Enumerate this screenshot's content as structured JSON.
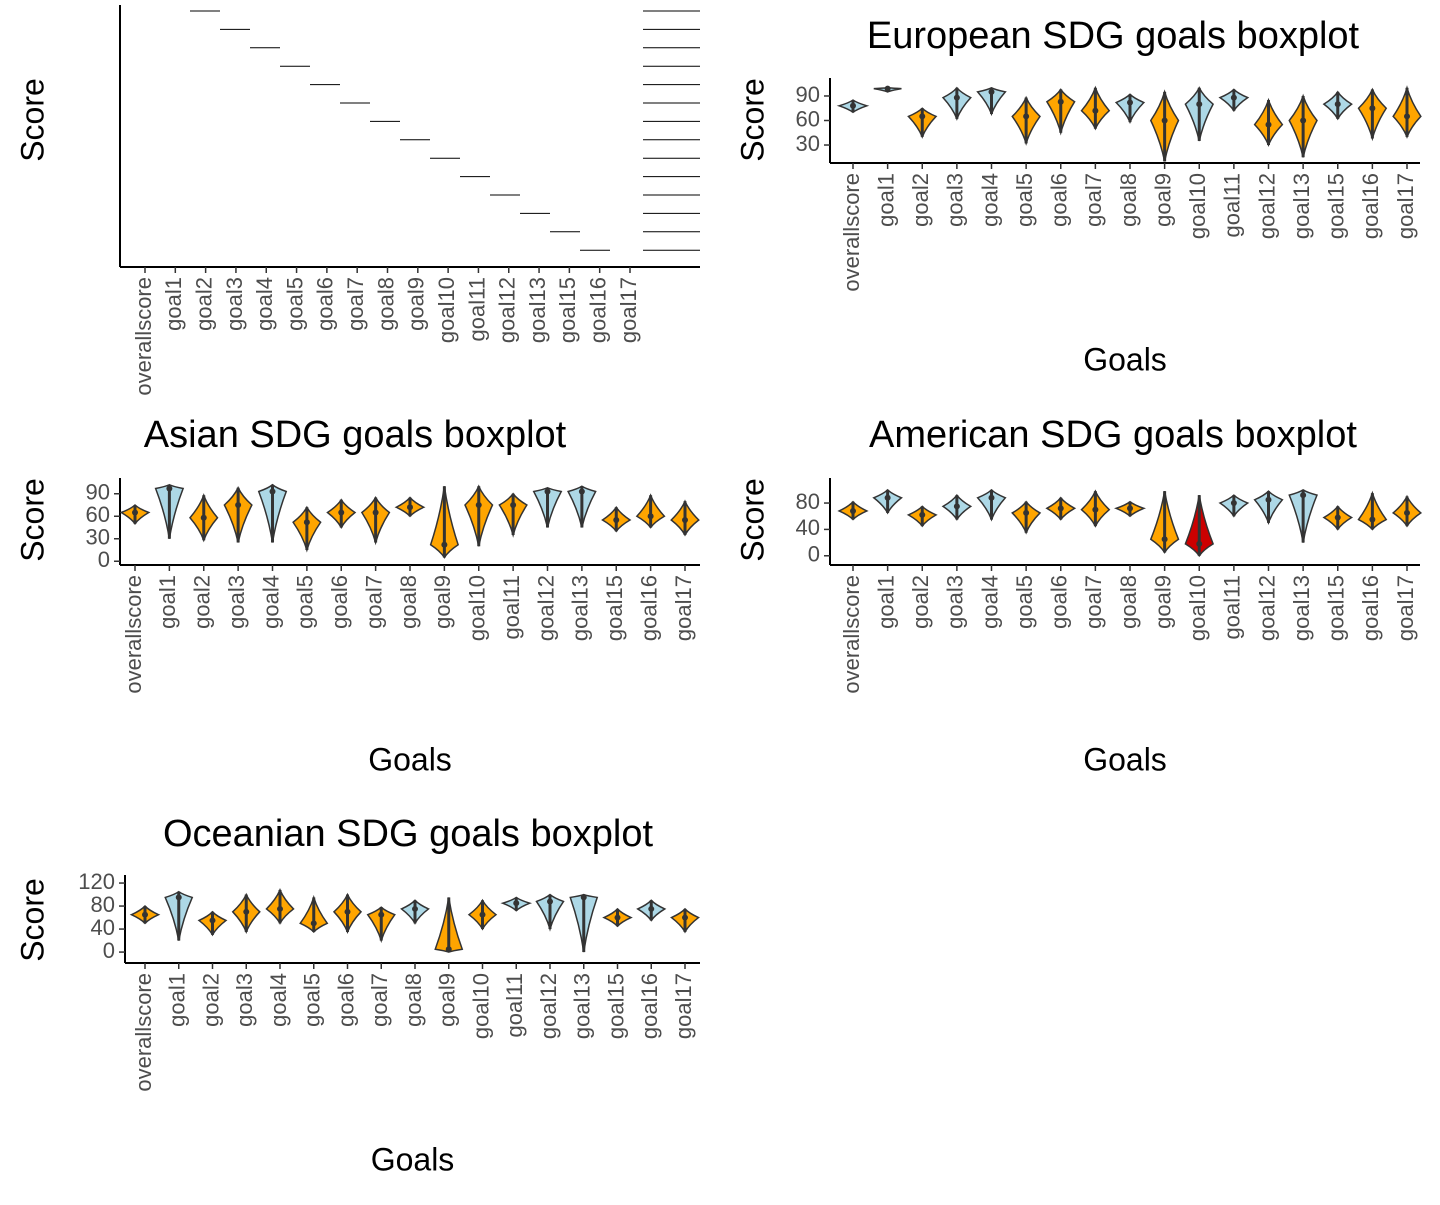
{
  "chart_data": [
    {
      "type": "violin",
      "y_label": "Score",
      "categories": [
        "overallscore",
        "goal1",
        "goal2",
        "goal3",
        "goal4",
        "goal5",
        "goal6",
        "goal7",
        "goal8",
        "goal9",
        "goal10",
        "goal11",
        "goal12",
        "goal13",
        "goal15",
        "goal16",
        "goal17"
      ]
    },
    {
      "type": "violin",
      "title": "European SDG goals boxplot",
      "x_label": "Goals",
      "y_label": "Score",
      "categories": [
        "overallscore",
        "goal1",
        "goal2",
        "goal3",
        "goal4",
        "goal5",
        "goal6",
        "goal7",
        "goal8",
        "goal9",
        "goal10",
        "goal11",
        "goal12",
        "goal13",
        "goal15",
        "goal16",
        "goal17"
      ],
      "medians": [
        78,
        99,
        65,
        88,
        95,
        65,
        83,
        72,
        82,
        60,
        80,
        88,
        55,
        60,
        80,
        75,
        65
      ],
      "mins": [
        70,
        95,
        40,
        62,
        68,
        32,
        45,
        50,
        58,
        10,
        35,
        72,
        30,
        15,
        62,
        38,
        40
      ],
      "maxs": [
        85,
        100,
        75,
        100,
        100,
        88,
        98,
        100,
        92,
        95,
        100,
        98,
        85,
        90,
        95,
        98,
        100
      ],
      "colors": [
        "#ADD8E6",
        "#ADD8E6",
        "#FFA500",
        "#ADD8E6",
        "#ADD8E6",
        "#FFA500",
        "#FFA500",
        "#FFA500",
        "#ADD8E6",
        "#FFA500",
        "#ADD8E6",
        "#ADD8E6",
        "#FFA500",
        "#FFA500",
        "#ADD8E6",
        "#FFA500",
        "#FFA500"
      ],
      "ylim": [
        8,
        112
      ],
      "yticks": [
        30,
        60,
        90
      ]
    },
    {
      "type": "violin",
      "title": "Asian SDG goals boxplot",
      "x_label": "Goals",
      "y_label": "Score",
      "categories": [
        "overallscore",
        "goal1",
        "goal2",
        "goal3",
        "goal4",
        "goal5",
        "goal6",
        "goal7",
        "goal8",
        "goal9",
        "goal10",
        "goal11",
        "goal12",
        "goal13",
        "goal15",
        "goal16",
        "goal17"
      ],
      "medians": [
        65,
        97,
        58,
        75,
        93,
        52,
        65,
        65,
        72,
        22,
        75,
        75,
        93,
        93,
        55,
        60,
        55
      ],
      "mins": [
        50,
        30,
        28,
        25,
        25,
        15,
        45,
        25,
        60,
        5,
        20,
        35,
        45,
        45,
        40,
        45,
        35
      ],
      "maxs": [
        75,
        102,
        88,
        98,
        102,
        72,
        82,
        85,
        85,
        100,
        100,
        90,
        98,
        100,
        72,
        88,
        80
      ],
      "colors": [
        "#FFA500",
        "#ADD8E6",
        "#FFA500",
        "#FFA500",
        "#ADD8E6",
        "#FFA500",
        "#FFA500",
        "#FFA500",
        "#FFA500",
        "#FFA500",
        "#FFA500",
        "#FFA500",
        "#ADD8E6",
        "#ADD8E6",
        "#FFA500",
        "#FFA500",
        "#FFA500"
      ],
      "ylim": [
        -5,
        111
      ],
      "yticks": [
        0,
        30,
        60,
        90
      ]
    },
    {
      "type": "violin",
      "title": "American SDG goals boxplot",
      "x_label": "Goals",
      "y_label": "Score",
      "categories": [
        "overallscore",
        "goal1",
        "goal2",
        "goal3",
        "goal4",
        "goal5",
        "goal6",
        "goal7",
        "goal8",
        "goal9",
        "goal10",
        "goal11",
        "goal12",
        "goal13",
        "goal15",
        "goal16",
        "goal17"
      ],
      "medians": [
        68,
        88,
        62,
        75,
        88,
        65,
        72,
        70,
        72,
        25,
        18,
        80,
        85,
        92,
        58,
        55,
        65
      ],
      "mins": [
        55,
        65,
        45,
        55,
        55,
        35,
        55,
        45,
        60,
        5,
        0,
        60,
        50,
        20,
        40,
        40,
        45
      ],
      "maxs": [
        82,
        100,
        75,
        92,
        100,
        82,
        88,
        98,
        82,
        98,
        92,
        92,
        98,
        100,
        75,
        95,
        90
      ],
      "colors": [
        "#FFA500",
        "#ADD8E6",
        "#FFA500",
        "#ADD8E6",
        "#ADD8E6",
        "#FFA500",
        "#FFA500",
        "#FFA500",
        "#FFA500",
        "#FFA500",
        "#CC0000",
        "#ADD8E6",
        "#ADD8E6",
        "#ADD8E6",
        "#FFA500",
        "#FFA500",
        "#FFA500"
      ],
      "ylim": [
        -14,
        118
      ],
      "yticks": [
        0,
        40,
        80
      ]
    },
    {
      "type": "violin",
      "title": "Oceanian SDG goals boxplot",
      "x_label": "Goals",
      "y_label": "Score",
      "categories": [
        "overallscore",
        "goal1",
        "goal2",
        "goal3",
        "goal4",
        "goal5",
        "goal6",
        "goal7",
        "goal8",
        "goal9",
        "goal10",
        "goal11",
        "goal12",
        "goal13",
        "goal15",
        "goal16",
        "goal17"
      ],
      "medians": [
        65,
        95,
        55,
        70,
        75,
        50,
        70,
        65,
        75,
        5,
        65,
        85,
        88,
        95,
        60,
        75,
        60
      ],
      "mins": [
        50,
        20,
        30,
        35,
        50,
        35,
        35,
        20,
        50,
        0,
        40,
        72,
        40,
        0,
        45,
        55,
        35
      ],
      "maxs": [
        80,
        105,
        70,
        100,
        108,
        95,
        100,
        78,
        90,
        95,
        90,
        95,
        100,
        100,
        75,
        90,
        75
      ],
      "colors": [
        "#FFA500",
        "#ADD8E6",
        "#FFA500",
        "#FFA500",
        "#FFA500",
        "#FFA500",
        "#FFA500",
        "#FFA500",
        "#ADD8E6",
        "#FFA500",
        "#FFA500",
        "#ADD8E6",
        "#ADD8E6",
        "#ADD8E6",
        "#FFA500",
        "#ADD8E6",
        "#FFA500"
      ],
      "ylim": [
        -19,
        134
      ],
      "yticks": [
        0,
        40,
        80,
        120
      ]
    }
  ]
}
